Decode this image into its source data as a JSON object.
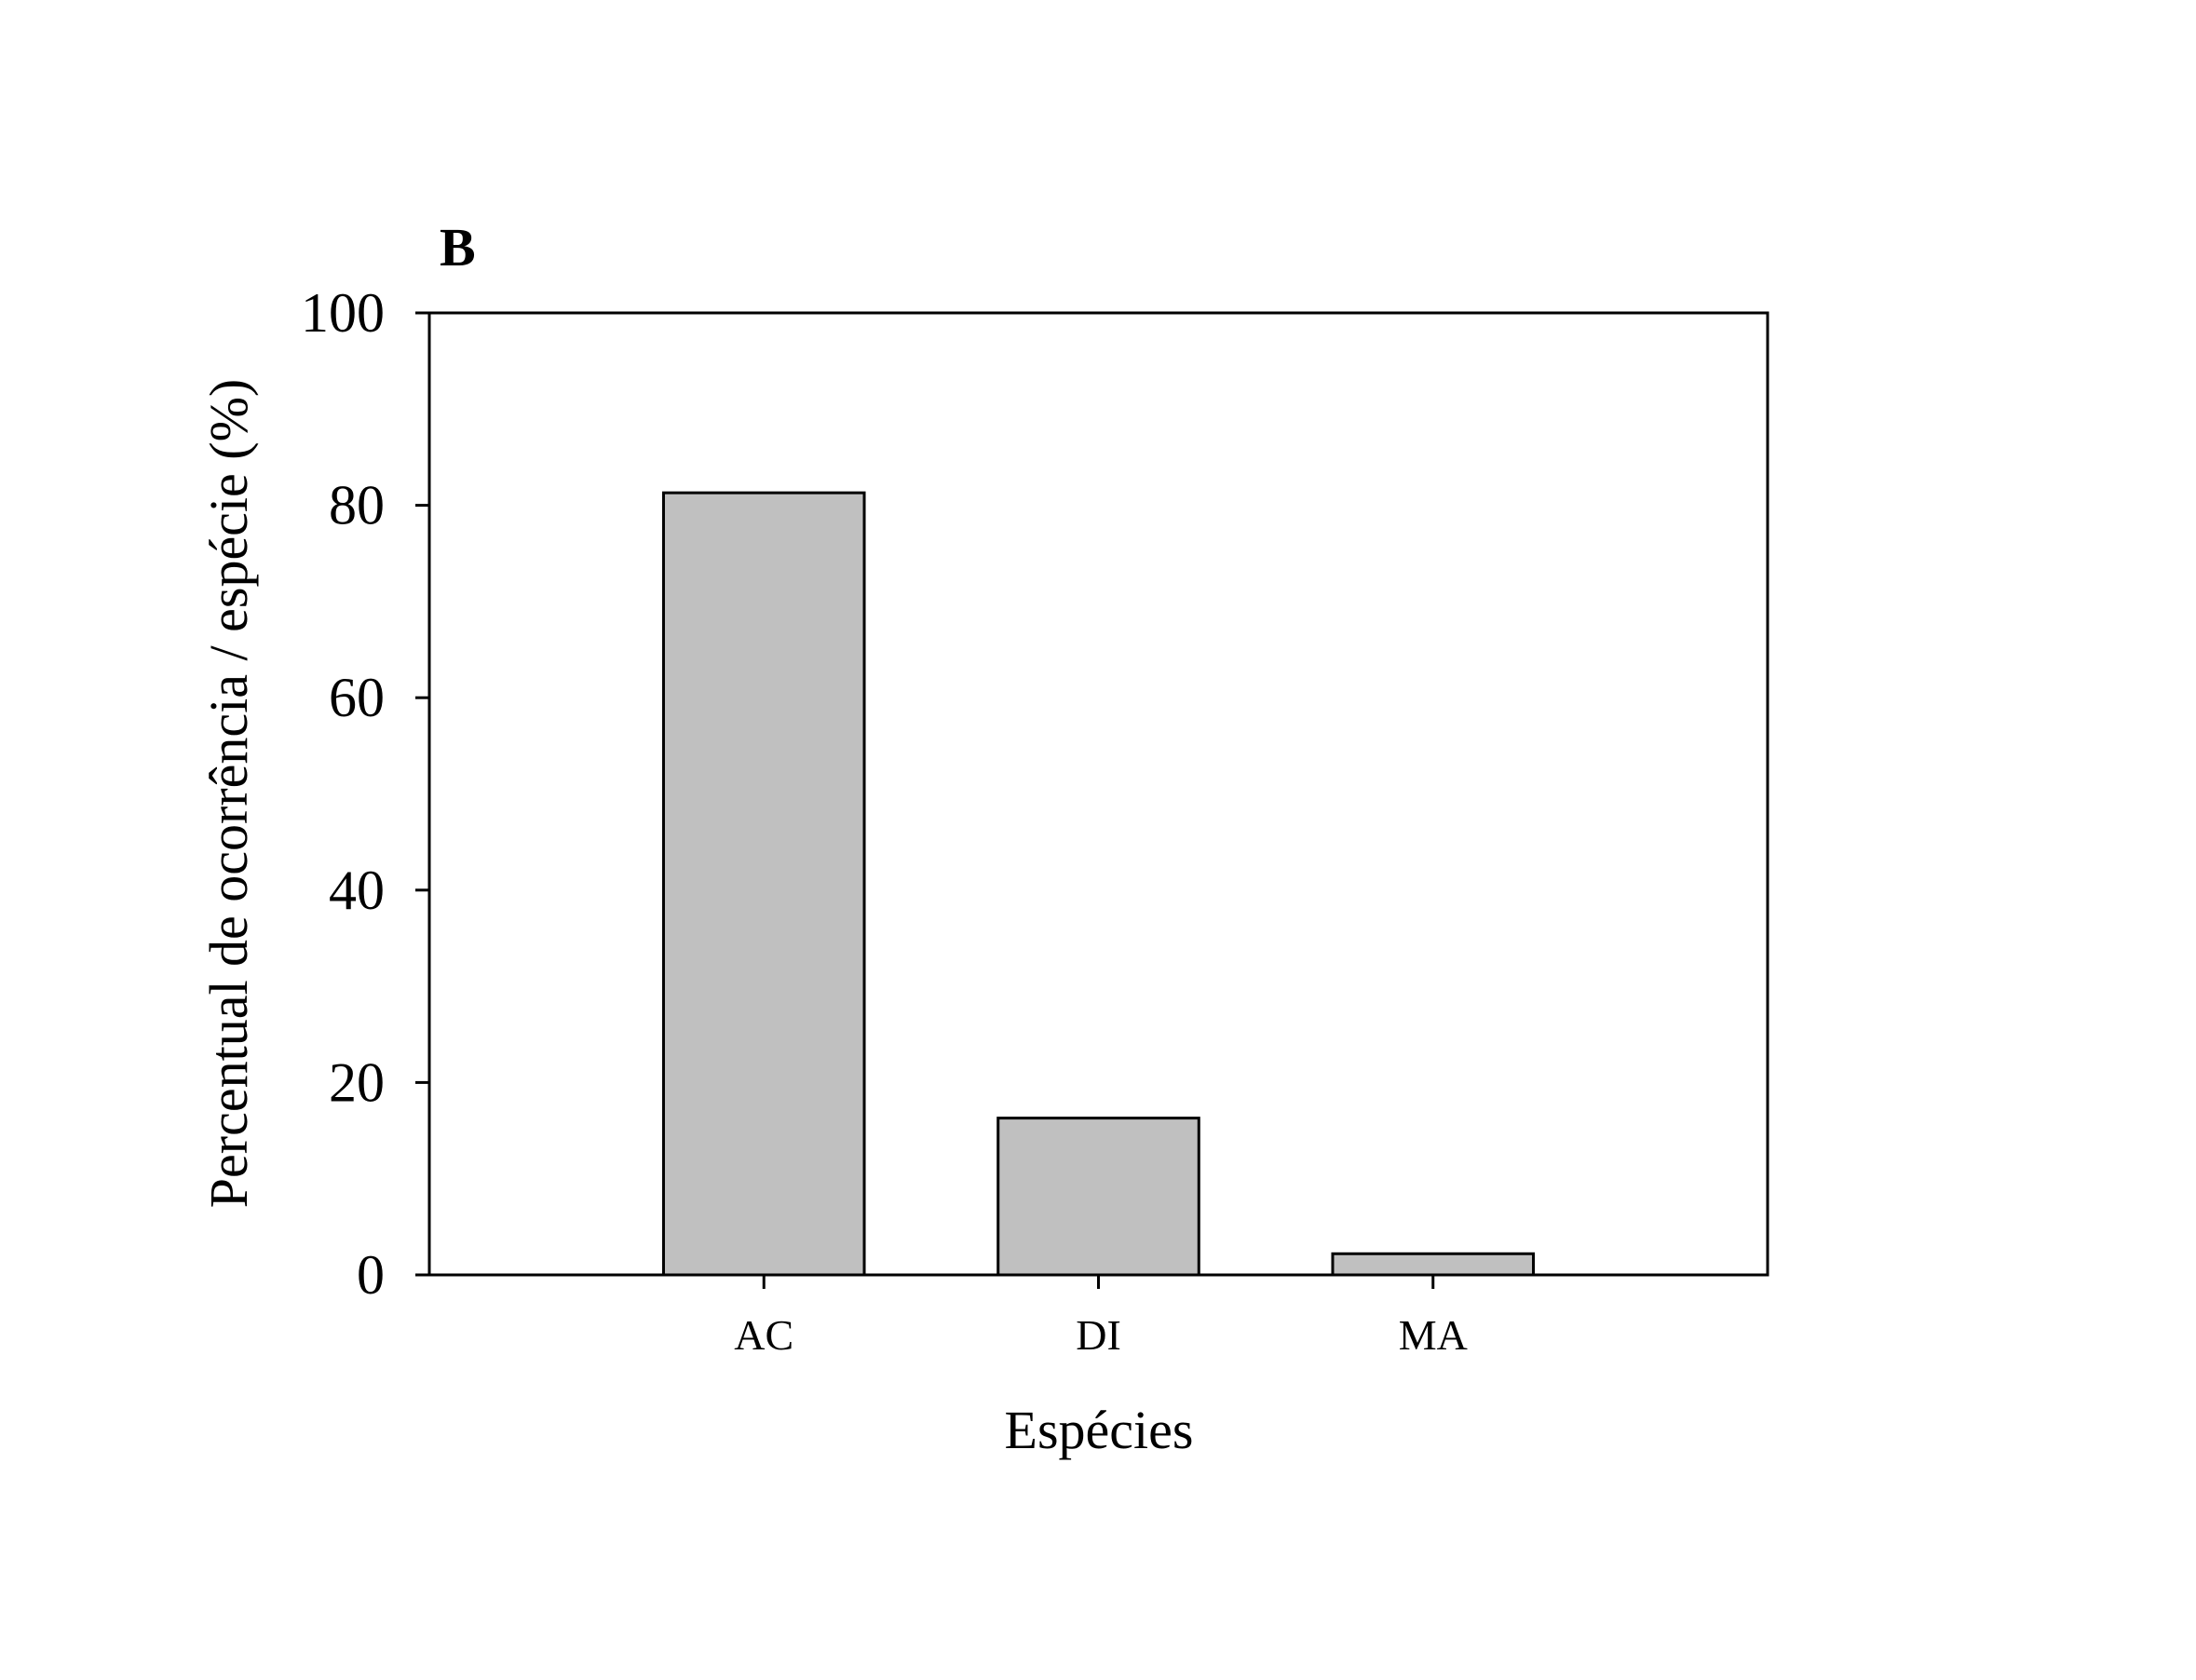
{
  "chart_data": {
    "type": "bar",
    "panel_label": "B",
    "xlabel": "Espécies",
    "ylabel": "Percentual de ocorrência / espécie (%)",
    "categories": [
      "AC",
      "DI",
      "MA"
    ],
    "values": [
      81.3,
      16.3,
      2.2
    ],
    "ylim": [
      0,
      100
    ],
    "yticks": [
      0,
      20,
      40,
      60,
      80,
      100
    ],
    "grid": false,
    "legend": "none",
    "bar_color": "#c0c0c0",
    "edge_color": "#000000"
  }
}
